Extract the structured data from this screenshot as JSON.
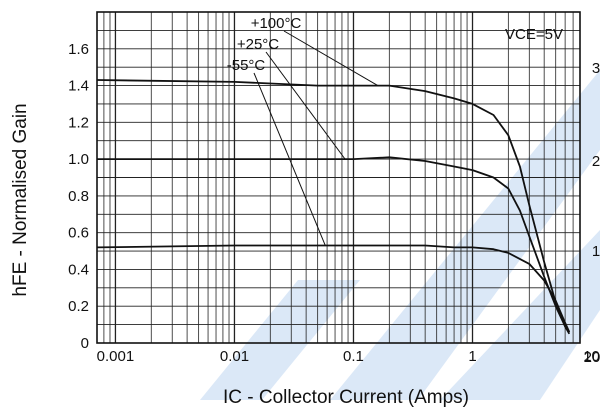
{
  "chart_data": {
    "type": "line",
    "xlabel": "IC - Collector Current (Amps)",
    "ylabel": "hFE - Normalised Gain",
    "x_scale": "log",
    "xlim": [
      0.0007,
      8
    ],
    "ylim": [
      0,
      1.8
    ],
    "x_ticks": [
      "0.001",
      "0.01",
      "0.1",
      "1",
      "10"
    ],
    "y_ticks": [
      "0",
      "0.2",
      "0.4",
      "0.6",
      "0.8",
      "1.0",
      "1.2",
      "1.4",
      "1.6"
    ],
    "grid": true,
    "condition_label": "VCE=5V",
    "series": [
      {
        "name": "+100°C",
        "x": [
          0.0007,
          0.01,
          0.05,
          0.1,
          0.2,
          0.4,
          0.7,
          1.0,
          1.5,
          2.0,
          2.5,
          3.0,
          4.0,
          5.0,
          6.0,
          6.5
        ],
        "y": [
          1.43,
          1.42,
          1.4,
          1.4,
          1.4,
          1.37,
          1.33,
          1.3,
          1.24,
          1.13,
          0.96,
          0.75,
          0.44,
          0.22,
          0.09,
          0.05
        ]
      },
      {
        "name": "+25°C",
        "x": [
          0.0007,
          0.01,
          0.05,
          0.1,
          0.2,
          0.4,
          0.7,
          1.0,
          1.5,
          2.0,
          2.5,
          3.0,
          4.0,
          5.0,
          6.0,
          6.5
        ],
        "y": [
          1.0,
          1.0,
          1.0,
          1.0,
          1.01,
          0.99,
          0.96,
          0.94,
          0.9,
          0.84,
          0.72,
          0.58,
          0.36,
          0.2,
          0.09,
          0.06
        ]
      },
      {
        "name": "-55°C",
        "x": [
          0.0007,
          0.01,
          0.05,
          0.1,
          0.2,
          0.4,
          0.7,
          1.0,
          1.5,
          2.0,
          3.0,
          4.0,
          5.0,
          6.0,
          6.5
        ],
        "y": [
          0.52,
          0.53,
          0.53,
          0.53,
          0.53,
          0.53,
          0.52,
          0.52,
          0.51,
          0.49,
          0.43,
          0.34,
          0.23,
          0.11,
          0.06
        ]
      }
    ],
    "watermark_text": [
      "3",
      "2",
      "1",
      "20"
    ]
  }
}
